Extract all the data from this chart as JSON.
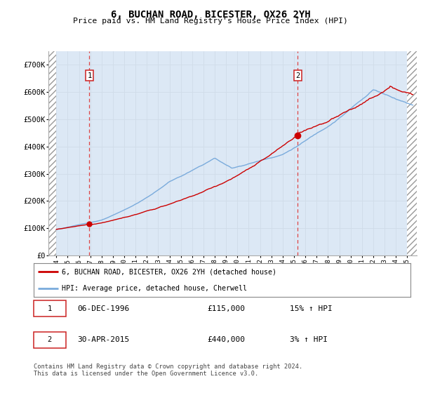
{
  "title": "6, BUCHAN ROAD, BICESTER, OX26 2YH",
  "subtitle": "Price paid vs. HM Land Registry's House Price Index (HPI)",
  "ylim": [
    0,
    750000
  ],
  "yticks": [
    0,
    100000,
    200000,
    300000,
    400000,
    500000,
    600000,
    700000
  ],
  "ytick_labels": [
    "£0",
    "£100K",
    "£200K",
    "£300K",
    "£400K",
    "£500K",
    "£600K",
    "£700K"
  ],
  "xstart_year": 1994,
  "xend_year": 2025,
  "sale1_date": 1996.92,
  "sale1_price": 115000,
  "sale1_label": "06-DEC-1996",
  "sale1_amount": "£115,000",
  "sale1_hpi": "15% ↑ HPI",
  "sale2_date": 2015.33,
  "sale2_price": 440000,
  "sale2_label": "30-APR-2015",
  "sale2_amount": "£440,000",
  "sale2_hpi": "3% ↑ HPI",
  "line_color_red": "#cc0000",
  "line_color_blue": "#7aabdc",
  "grid_color": "#d0dce8",
  "bg_color": "#dce8f5",
  "legend_label_red": "6, BUCHAN ROAD, BICESTER, OX26 2YH (detached house)",
  "legend_label_blue": "HPI: Average price, detached house, Cherwell",
  "footer": "Contains HM Land Registry data © Crown copyright and database right 2024.\nThis data is licensed under the Open Government Licence v3.0."
}
